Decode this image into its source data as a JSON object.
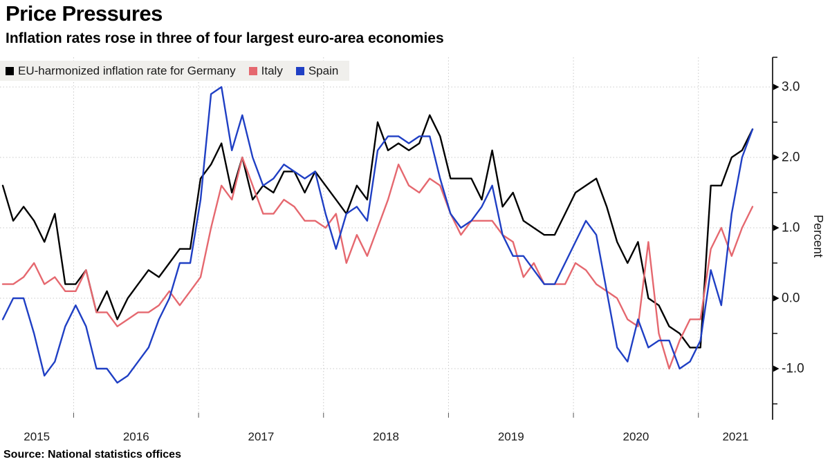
{
  "title": "Price Pressures",
  "subtitle": "Inflation rates rose in three of four largest euro-area economies",
  "source_note": "Source: National statistics offices",
  "legend": {
    "items": [
      {
        "label": "EU-harmonized inflation rate for Germany",
        "color": "#000000"
      },
      {
        "label": "Italy",
        "color": "#e5686f"
      },
      {
        "label": "Spain",
        "color": "#1f3fc4"
      }
    ]
  },
  "colors": {
    "background": "#ffffff",
    "legend_background": "#f0efec",
    "grid": "#c8c8c8",
    "axis": "#000000",
    "tick_text": "#1a1a1a"
  },
  "chart_data": {
    "type": "line",
    "title": "Price Pressures",
    "subtitle": "Inflation rates rose in three of four largest euro-area economies",
    "frequency": "monthly",
    "x_start": "2015-05",
    "x_end": "2021-05",
    "x_tick_labels": [
      "2015",
      "2016",
      "2017",
      "2018",
      "2019",
      "2020",
      "2021"
    ],
    "ylabel": "Percent",
    "y_ticks": [
      3.0,
      2.0,
      1.0,
      0.0,
      -1.0
    ],
    "y_tick_labels": [
      "3.0",
      "2.0",
      "1.0",
      "0.0",
      "-1.0"
    ],
    "y_minor_ticks": [
      2.5,
      1.5,
      0.5,
      -0.5,
      -1.5
    ],
    "ylim": [
      -1.63,
      3.42
    ],
    "grid": "dotted",
    "legend_position": "top-left",
    "series": [
      {
        "name": "EU-harmonized inflation rate for Germany",
        "color": "#000000",
        "values": [
          1.6,
          1.1,
          1.3,
          1.1,
          0.8,
          1.2,
          0.2,
          0.2,
          0.4,
          -0.2,
          0.1,
          -0.3,
          0.0,
          0.2,
          0.4,
          0.3,
          0.5,
          0.7,
          0.7,
          1.7,
          1.9,
          2.2,
          1.5,
          2.0,
          1.4,
          1.6,
          1.5,
          1.8,
          1.8,
          1.5,
          1.8,
          1.6,
          1.4,
          1.2,
          1.6,
          1.4,
          2.5,
          2.1,
          2.2,
          2.1,
          2.2,
          2.6,
          2.3,
          1.7,
          1.7,
          1.7,
          1.4,
          2.1,
          1.3,
          1.5,
          1.1,
          1.0,
          0.9,
          0.9,
          1.2,
          1.5,
          1.6,
          1.7,
          1.3,
          0.8,
          0.5,
          0.8,
          0.0,
          -0.1,
          -0.4,
          -0.5,
          -0.7,
          -0.7,
          1.6,
          1.6,
          2.0,
          2.1,
          2.4
        ]
      },
      {
        "name": "Italy",
        "color": "#e5686f",
        "values": [
          0.2,
          0.2,
          0.3,
          0.5,
          0.2,
          0.3,
          0.1,
          0.1,
          0.4,
          -0.2,
          -0.2,
          -0.4,
          -0.3,
          -0.2,
          -0.2,
          -0.1,
          0.1,
          -0.1,
          0.1,
          0.3,
          1.0,
          1.6,
          1.4,
          2.0,
          1.6,
          1.2,
          1.2,
          1.4,
          1.3,
          1.1,
          1.1,
          1.0,
          1.2,
          0.5,
          0.9,
          0.6,
          1.0,
          1.4,
          1.9,
          1.6,
          1.5,
          1.7,
          1.6,
          1.2,
          0.9,
          1.1,
          1.1,
          1.1,
          0.9,
          0.8,
          0.3,
          0.5,
          0.2,
          0.2,
          0.2,
          0.5,
          0.4,
          0.2,
          0.1,
          0.0,
          -0.3,
          -0.4,
          0.8,
          -0.5,
          -1.0,
          -0.6,
          -0.3,
          -0.3,
          0.7,
          1.0,
          0.6,
          1.0,
          1.3
        ]
      },
      {
        "name": "Spain",
        "color": "#1f3fc4",
        "values": [
          -0.3,
          0.0,
          0.0,
          -0.5,
          -1.1,
          -0.9,
          -0.4,
          -0.1,
          -0.4,
          -1.0,
          -1.0,
          -1.2,
          -1.1,
          -0.9,
          -0.7,
          -0.3,
          0.0,
          0.5,
          0.5,
          1.4,
          2.9,
          3.0,
          2.1,
          2.6,
          2.0,
          1.6,
          1.7,
          1.9,
          1.8,
          1.7,
          1.8,
          1.2,
          0.7,
          1.2,
          1.3,
          1.1,
          2.1,
          2.3,
          2.3,
          2.2,
          2.3,
          2.3,
          1.7,
          1.2,
          1.0,
          1.1,
          1.3,
          1.6,
          0.9,
          0.6,
          0.6,
          0.4,
          0.2,
          0.2,
          0.5,
          0.8,
          1.1,
          0.9,
          0.1,
          -0.7,
          -0.9,
          -0.3,
          -0.7,
          -0.6,
          -0.6,
          -1.0,
          -0.9,
          -0.6,
          0.4,
          -0.1,
          1.2,
          2.0,
          2.4
        ]
      }
    ]
  }
}
